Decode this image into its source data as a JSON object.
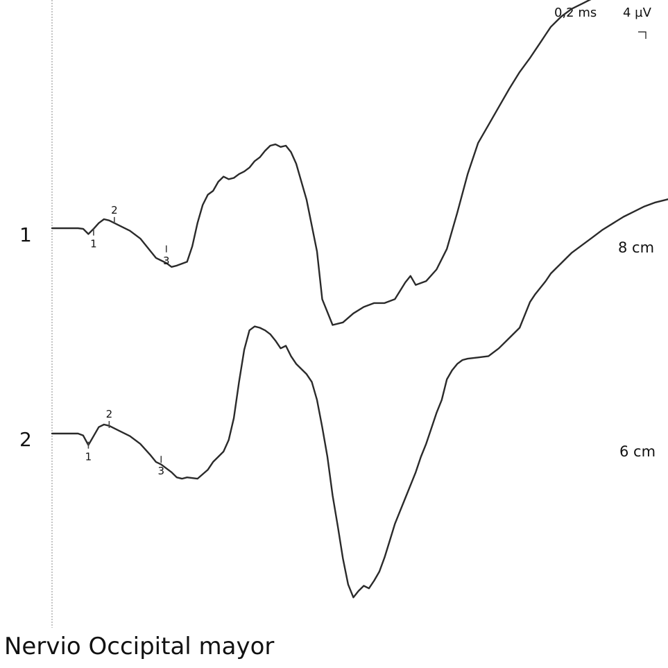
{
  "chart_data": {
    "type": "line",
    "title": "Nervio Occipital mayor",
    "time_scale": "0,2 ms",
    "amplitude_scale": "4 µV",
    "series": [
      {
        "name": "1",
        "distance": "8 cm",
        "markers": [
          {
            "label": "1",
            "t": 0.08,
            "v": -3.0
          },
          {
            "label": "2",
            "t": 0.12,
            "v": 6.0
          },
          {
            "label": "3",
            "t": 0.22,
            "v": -16.0
          }
        ],
        "t": [
          0.0,
          0.03,
          0.05,
          0.06,
          0.07,
          0.08,
          0.09,
          0.1,
          0.11,
          0.12,
          0.13,
          0.15,
          0.17,
          0.19,
          0.2,
          0.21,
          0.22,
          0.23,
          0.24,
          0.26,
          0.27,
          0.28,
          0.29,
          0.3,
          0.31,
          0.32,
          0.33,
          0.34,
          0.35,
          0.36,
          0.37,
          0.38,
          0.39,
          0.4,
          0.41,
          0.42,
          0.43,
          0.44,
          0.45,
          0.46,
          0.47,
          0.49,
          0.51,
          0.52,
          0.54,
          0.56,
          0.58,
          0.6,
          0.62,
          0.64,
          0.66,
          0.68,
          0.69,
          0.7,
          0.72,
          0.74,
          0.76,
          0.78,
          0.8,
          0.82,
          0.84,
          0.86,
          0.88,
          0.9,
          0.92,
          0.93,
          0.94,
          0.95,
          0.96,
          0.97,
          0.98,
          1.0,
          1.02,
          1.04,
          1.06,
          1.08,
          1.09,
          1.1,
          1.12,
          1.14,
          1.16,
          1.18,
          1.19
        ],
        "v": [
          0,
          0,
          0,
          -0.5,
          -4.5,
          -0.5,
          4,
          7,
          6,
          4,
          2,
          -2,
          -8,
          -18,
          -23,
          -25,
          -27,
          -30,
          -29,
          -26,
          -14,
          4,
          18,
          26,
          29,
          36,
          40,
          38,
          39,
          42,
          44,
          47,
          52,
          55,
          60,
          64,
          65,
          63,
          64,
          59,
          50,
          22,
          -18,
          -55,
          -75,
          -73,
          -66,
          -61,
          -58,
          -58,
          -55,
          -42,
          -37,
          -44,
          -41,
          -32,
          -16,
          12,
          42,
          66,
          80,
          94,
          108,
          121,
          132,
          138,
          144,
          150,
          156,
          160,
          164,
          170,
          174,
          178,
          181,
          184,
          186,
          187,
          190,
          192,
          194,
          196,
          198
        ]
      },
      {
        "name": "2",
        "distance": "6 cm",
        "markers": [
          {
            "label": "1",
            "t": 0.07,
            "v": -9.0
          },
          {
            "label": "2",
            "t": 0.11,
            "v": 7.0
          },
          {
            "label": "3",
            "t": 0.21,
            "v": -20.0
          }
        ],
        "t": [
          0.0,
          0.03,
          0.05,
          0.06,
          0.07,
          0.08,
          0.09,
          0.1,
          0.11,
          0.12,
          0.13,
          0.15,
          0.17,
          0.19,
          0.2,
          0.21,
          0.22,
          0.23,
          0.24,
          0.25,
          0.26,
          0.28,
          0.3,
          0.31,
          0.32,
          0.33,
          0.34,
          0.35,
          0.36,
          0.37,
          0.38,
          0.39,
          0.4,
          0.41,
          0.42,
          0.43,
          0.44,
          0.45,
          0.46,
          0.47,
          0.48,
          0.49,
          0.5,
          0.51,
          0.52,
          0.53,
          0.54,
          0.55,
          0.56,
          0.57,
          0.58,
          0.59,
          0.6,
          0.61,
          0.62,
          0.63,
          0.64,
          0.65,
          0.66,
          0.67,
          0.68,
          0.69,
          0.7,
          0.71,
          0.72,
          0.73,
          0.74,
          0.75,
          0.76,
          0.77,
          0.78,
          0.79,
          0.8,
          0.82,
          0.84,
          0.86,
          0.88,
          0.9,
          0.91,
          0.92,
          0.93,
          0.94,
          0.95,
          0.96,
          0.97,
          0.98,
          0.99,
          1.0,
          1.02,
          1.04,
          1.06,
          1.08,
          1.1,
          1.12,
          1.14,
          1.16,
          1.18,
          1.19
        ],
        "v": [
          0,
          0,
          0,
          -1.5,
          -9,
          -2,
          5,
          7,
          6,
          4,
          2,
          -2,
          -8,
          -17,
          -22,
          -24,
          -27,
          -30,
          -34,
          -35,
          -34,
          -35,
          -28,
          -22,
          -18,
          -14,
          -5,
          12,
          40,
          65,
          80,
          83,
          82,
          80,
          77,
          72,
          66,
          68,
          60,
          54,
          50,
          46,
          40,
          26,
          5,
          -18,
          -48,
          -72,
          -97,
          -117,
          -127,
          -122,
          -118,
          -120,
          -114,
          -107,
          -96,
          -83,
          -70,
          -60,
          -50,
          -40,
          -30,
          -18,
          -8,
          4,
          16,
          26,
          42,
          49,
          54,
          57,
          58,
          59,
          60,
          66,
          74,
          82,
          92,
          102,
          108,
          113,
          118,
          124,
          128,
          132,
          136,
          140,
          146,
          152,
          158,
          163,
          168,
          172,
          176,
          179,
          181,
          182
        ]
      }
    ],
    "grid": false,
    "legend": "none"
  }
}
